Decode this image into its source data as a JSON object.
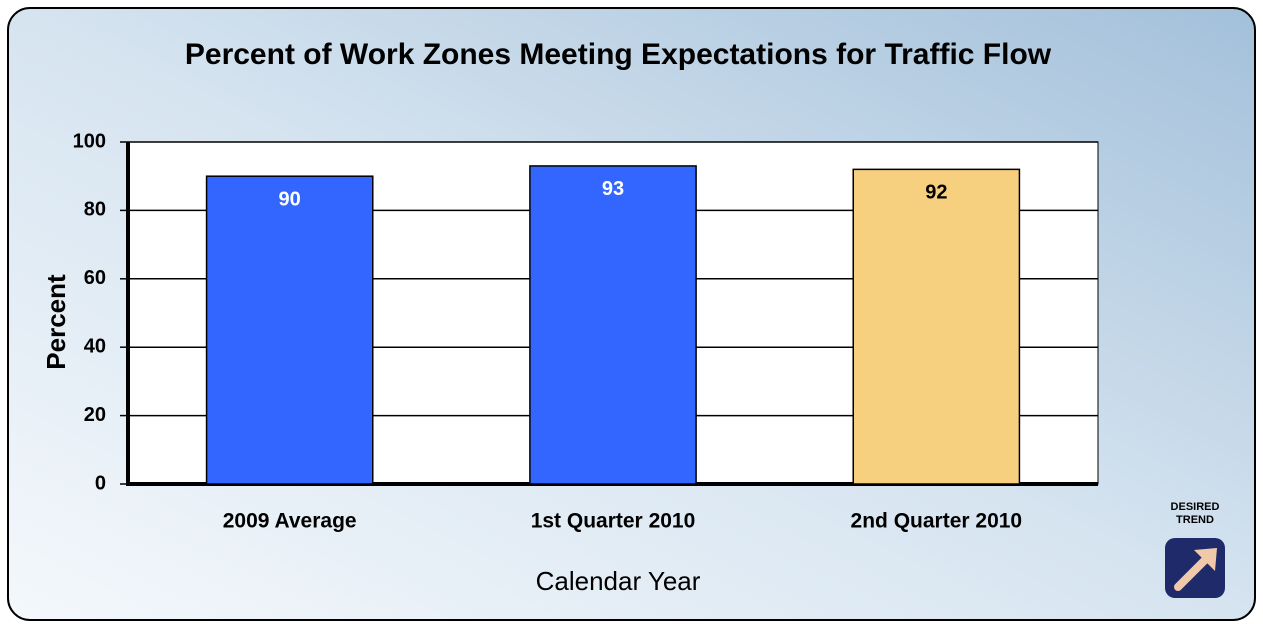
{
  "chart_data": {
    "type": "bar",
    "title": "Percent of Work Zones Meeting Expectations for Traffic Flow",
    "y_label": "Percent",
    "x_label": "Calendar Year",
    "categories": [
      "2009 Average",
      "1st Quarter 2010",
      "2nd Quarter 2010"
    ],
    "values": [
      90,
      93,
      92
    ],
    "colors": [
      "#3366ff",
      "#3366ff",
      "#f7d07f"
    ],
    "label_colors": [
      "#ffffff",
      "#ffffff",
      "#000000"
    ],
    "ylim": [
      0,
      100
    ],
    "yticks": [
      0,
      20,
      40,
      60,
      80,
      100
    ],
    "grid": true,
    "annotations": [
      "DESIRED",
      "TREND"
    ]
  }
}
